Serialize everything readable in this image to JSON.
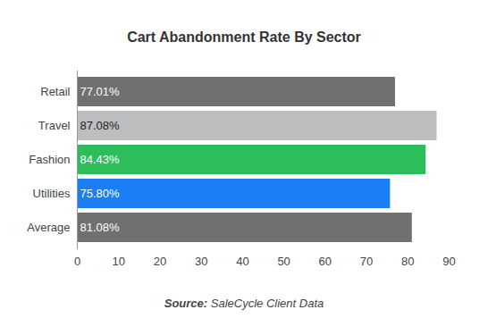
{
  "chart_data": {
    "type": "bar",
    "orientation": "horizontal",
    "title": "Cart Abandonment Rate By Sector",
    "caption_label": "Source:",
    "caption": "SaleCycle Client Data",
    "categories": [
      "Retail",
      "Travel",
      "Fashion",
      "Utilities",
      "Average"
    ],
    "values": [
      77.01,
      87.08,
      84.43,
      75.8,
      81.08
    ],
    "value_labels": [
      "77.01%",
      "87.08%",
      "84.43%",
      "75.80%",
      "81.08%"
    ],
    "colors": [
      "#707070",
      "#bcbec0",
      "#2dbe5b",
      "#1a7ef5",
      "#707070"
    ],
    "xlim": [
      0,
      90
    ],
    "xticks": [
      0,
      10,
      20,
      30,
      40,
      50,
      60,
      70,
      80,
      90
    ],
    "grid": false,
    "data_labels": true
  }
}
